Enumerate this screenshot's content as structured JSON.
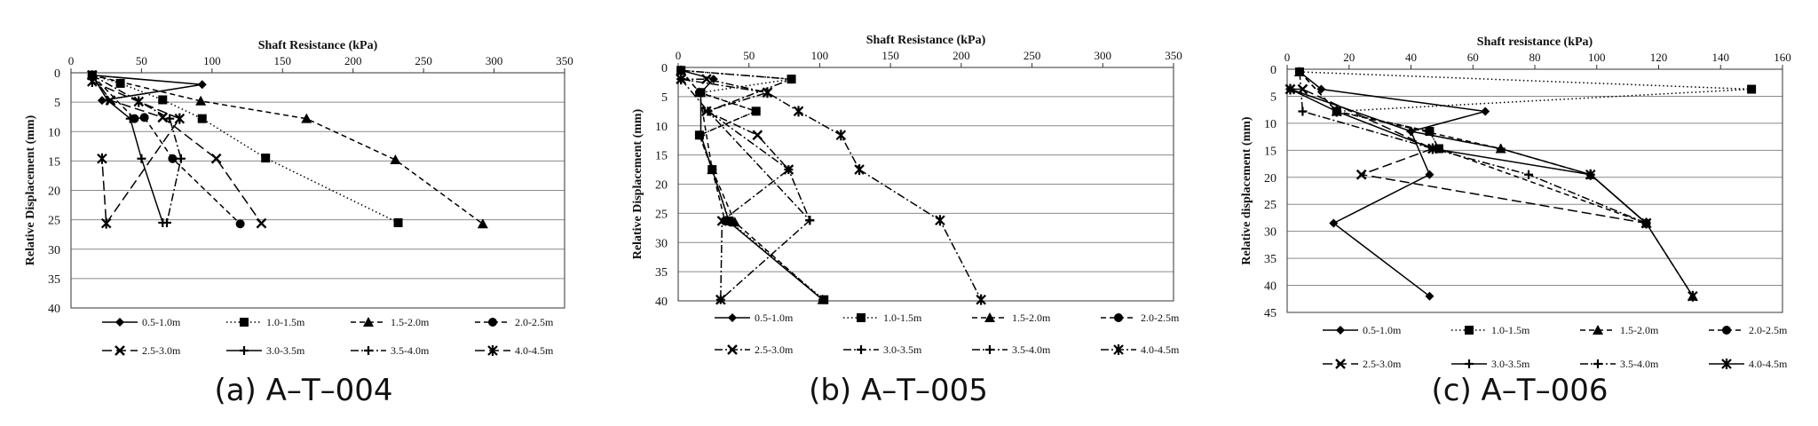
{
  "captions": [
    "(a)  A–T–004",
    "(b)  A–T–005",
    "(c)  A–T–006"
  ],
  "chart_data": [
    {
      "type": "line",
      "title": "",
      "xlabel": "Shaft Resistance (kPa)",
      "ylabel": "Relative Displacement (mm)",
      "xlim": [
        0,
        350
      ],
      "xticks": [
        0,
        50,
        100,
        150,
        200,
        250,
        300,
        350
      ],
      "ylim": [
        0,
        40
      ],
      "yticks": [
        0,
        5,
        10,
        15,
        20,
        25,
        30,
        35,
        40
      ],
      "y_inverted": true,
      "grid": "horizontal",
      "legend": "bottom",
      "series": [
        {
          "name": "0.5-1.0m",
          "marker": "diamond",
          "dash": "solid",
          "points": [
            [
              15,
              0.4
            ],
            [
              93,
              2
            ],
            [
              22,
              4.7
            ]
          ]
        },
        {
          "name": "1.0-1.5m",
          "marker": "square",
          "dash": "dotted",
          "points": [
            [
              15,
              0.4
            ],
            [
              35,
              1.8
            ],
            [
              65,
              4.6
            ],
            [
              93,
              7.8
            ],
            [
              138,
              14.5
            ],
            [
              232,
              25.5
            ]
          ]
        },
        {
          "name": "1.5-2.0m",
          "marker": "triangle",
          "dash": "dashed",
          "points": [
            [
              15,
              0.4
            ],
            [
              92,
              4.8
            ],
            [
              167,
              7.8
            ],
            [
              230,
              14.8
            ],
            [
              292,
              25.7
            ]
          ]
        },
        {
          "name": "2.0-2.5m",
          "marker": "circle",
          "dash": "dashed",
          "points": [
            [
              15,
              0.4
            ],
            [
              45,
              7.8
            ],
            [
              52,
              7.6
            ],
            [
              72,
              14.6
            ],
            [
              120,
              25.7
            ]
          ]
        },
        {
          "name": "2.5-3.0m",
          "marker": "x",
          "dash": "longdash",
          "points": [
            [
              15,
              0.4
            ],
            [
              28,
              4.7
            ],
            [
              65,
              7.6
            ],
            [
              103,
              14.6
            ],
            [
              135,
              25.6
            ]
          ]
        },
        {
          "name": "3.0-3.5m",
          "marker": "plus",
          "dash": "solid",
          "points": [
            [
              15,
              0.4
            ],
            [
              26,
              4.7
            ],
            [
              42,
              7.8
            ],
            [
              50,
              14.6
            ],
            [
              65,
              25.5
            ]
          ]
        },
        {
          "name": "3.5-4.0m",
          "marker": "plus",
          "dash": "dashdot",
          "points": [
            [
              15,
              0.4
            ],
            [
              70,
              7.8
            ],
            [
              78,
              14.6
            ],
            [
              68,
              25.5
            ]
          ]
        },
        {
          "name": "4.0-4.5m",
          "marker": "star",
          "dash": "longdash",
          "points": [
            [
              15,
              1.5
            ],
            [
              48,
              4.9
            ],
            [
              77,
              7.8
            ],
            [
              25,
              25.6
            ],
            [
              22,
              14.6
            ]
          ]
        }
      ]
    },
    {
      "type": "line",
      "title": "",
      "xlabel": "Shaft Resistance (kPa)",
      "ylabel": "Relative Displacement (mm)",
      "xlim": [
        0,
        350
      ],
      "xticks": [
        0,
        50,
        100,
        150,
        200,
        250,
        300,
        350
      ],
      "ylim": [
        0,
        40
      ],
      "yticks": [
        0,
        5,
        10,
        15,
        20,
        25,
        30,
        35,
        40
      ],
      "y_inverted": true,
      "grid": "horizontal",
      "legend": "bottom",
      "series": [
        {
          "name": "0.5-1.0m",
          "marker": "diamond",
          "dash": "solid",
          "points": [
            [
              2,
              0.5
            ],
            [
              25,
              2
            ],
            [
              16,
              4.3
            ],
            [
              16,
              11.6
            ],
            [
              24,
              17.5
            ],
            [
              36,
              26.5
            ],
            [
              102,
              39.8
            ]
          ]
        },
        {
          "name": "1.0-1.5m",
          "marker": "square",
          "dash": "dotted",
          "points": [
            [
              2,
              0.5
            ],
            [
              80,
              2
            ],
            [
              16,
              4.3
            ],
            [
              55,
              7.5
            ],
            [
              15,
              11.6
            ],
            [
              24,
              17.5
            ],
            [
              36,
              26.3
            ],
            [
              103,
              39.8
            ]
          ]
        },
        {
          "name": "1.5-2.0m",
          "marker": "triangle",
          "dash": "dashed",
          "points": [
            [
              2,
              0.5
            ],
            [
              15,
              4.3
            ],
            [
              24,
              17.5
            ],
            [
              40,
              26.5
            ],
            [
              102,
              39.8
            ]
          ]
        },
        {
          "name": "2.0-2.5m",
          "marker": "circle",
          "dash": "dashed",
          "points": [
            [
              2,
              0.5
            ],
            [
              15,
              4.3
            ],
            [
              55,
              7.5
            ],
            [
              15,
              11.6
            ],
            [
              24,
              17.5
            ],
            [
              33,
              26.3
            ]
          ]
        },
        {
          "name": "2.5-3.0m",
          "marker": "x",
          "dash": "dashdot",
          "points": [
            [
              2,
              2
            ],
            [
              20,
              2
            ],
            [
              63,
              4.3
            ],
            [
              20,
              7.5
            ],
            [
              56,
              11.6
            ],
            [
              78,
              17.5
            ],
            [
              31,
              26.3
            ],
            [
              30,
              39.8
            ]
          ]
        },
        {
          "name": "3.0-3.5m",
          "marker": "plus",
          "dash": "dashdot",
          "points": [
            [
              2,
              2
            ],
            [
              21,
              7.5
            ],
            [
              78,
              17.5
            ],
            [
              93,
              26.2
            ],
            [
              30,
              39.8
            ]
          ]
        },
        {
          "name": "3.5-4.0m",
          "marker": "plus",
          "dash": "dashdot",
          "points": [
            [
              2,
              0.5
            ],
            [
              80,
              2
            ],
            [
              21,
              7.5
            ],
            [
              93,
              26.2
            ]
          ]
        },
        {
          "name": "4.0-4.5m",
          "marker": "star",
          "dash": "dashdot",
          "points": [
            [
              2,
              2
            ],
            [
              63,
              4.3
            ],
            [
              85,
              7.5
            ],
            [
              115,
              11.6
            ],
            [
              128,
              17.5
            ],
            [
              185,
              26.2
            ],
            [
              214,
              39.8
            ]
          ]
        }
      ]
    },
    {
      "type": "line",
      "title": "",
      "xlabel": "Shaft resistance (kPa)",
      "ylabel": "Relative displacement (mm)",
      "xlim": [
        0,
        160
      ],
      "xticks": [
        0,
        20,
        40,
        60,
        80,
        100,
        120,
        140,
        160
      ],
      "ylim": [
        0,
        45
      ],
      "yticks": [
        0,
        5,
        10,
        15,
        20,
        25,
        30,
        35,
        40,
        45
      ],
      "y_inverted": true,
      "grid": "horizontal",
      "legend": "bottom",
      "series": [
        {
          "name": "0.5-1.0m",
          "marker": "diamond",
          "dash": "solid",
          "points": [
            [
              4,
              0.5
            ],
            [
              11,
              3.7
            ],
            [
              64,
              7.8
            ],
            [
              40,
              11.5
            ],
            [
              46,
              19.5
            ],
            [
              15,
              28.5
            ],
            [
              46,
              42
            ]
          ]
        },
        {
          "name": "1.0-1.5m",
          "marker": "square",
          "dash": "dotted",
          "points": [
            [
              4,
              0.5
            ],
            [
              150,
              3.7
            ],
            [
              16,
              7.8
            ],
            [
              46,
              11.5
            ],
            [
              49,
              14.7
            ]
          ]
        },
        {
          "name": "1.5-2.0m",
          "marker": "triangle",
          "dash": "dashed",
          "points": [
            [
              4,
              0.5
            ],
            [
              16,
              7.8
            ],
            [
              69,
              14.7
            ],
            [
              98,
              19.5
            ],
            [
              116,
              28.5
            ],
            [
              131,
              42
            ]
          ]
        },
        {
          "name": "2.0-2.5m",
          "marker": "circle",
          "dash": "dashed",
          "points": [
            [
              4,
              0.5
            ],
            [
              16,
              7.8
            ],
            [
              46,
              11.5
            ],
            [
              49,
              14.7
            ],
            [
              116,
              28.5
            ]
          ]
        },
        {
          "name": "2.5-3.0m",
          "marker": "x",
          "dash": "longdash",
          "points": [
            [
              1,
              3.7
            ],
            [
              5,
              3.7
            ],
            [
              47,
              14.7
            ],
            [
              24,
              19.5
            ],
            [
              116,
              28.5
            ]
          ]
        },
        {
          "name": "3.0-3.5m",
          "marker": "plus",
          "dash": "solid",
          "points": [
            [
              1,
              3.7
            ],
            [
              40,
              11.5
            ],
            [
              69,
              14.7
            ],
            [
              98,
              19.5
            ],
            [
              116,
              28.5
            ]
          ]
        },
        {
          "name": "3.5-4.0m",
          "marker": "plus",
          "dash": "dashdot",
          "points": [
            [
              4,
              0.5
            ],
            [
              5,
              7.8
            ],
            [
              47,
              14.7
            ],
            [
              78,
              19.5
            ],
            [
              116,
              28.5
            ]
          ]
        },
        {
          "name": "4.0-4.5m",
          "marker": "star",
          "dash": "solid",
          "points": [
            [
              1,
              3.7
            ],
            [
              16,
              7.8
            ],
            [
              47,
              14.7
            ],
            [
              98,
              19.5
            ],
            [
              116,
              28.5
            ],
            [
              131,
              42
            ]
          ]
        }
      ]
    }
  ]
}
